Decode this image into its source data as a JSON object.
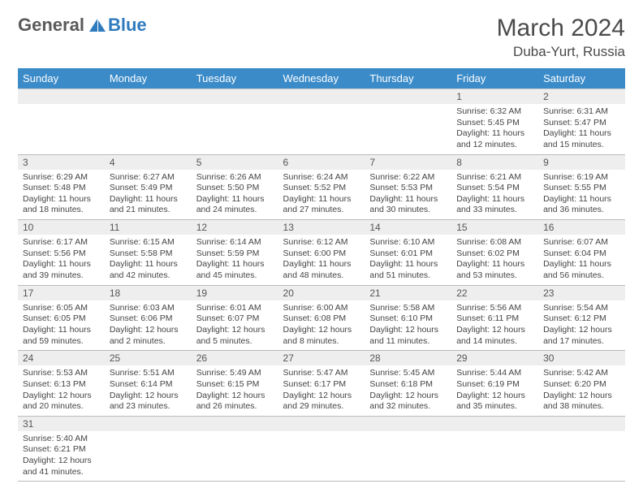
{
  "brand": {
    "part1": "General",
    "part2": "Blue"
  },
  "title": "March 2024",
  "location": "Duba-Yurt, Russia",
  "colors": {
    "header_bg": "#3b8bc9",
    "header_text": "#ffffff",
    "daynum_bg": "#eeeeee",
    "border": "#bbbbbb",
    "brand_gray": "#5a5a5a",
    "brand_blue": "#2f7bbf"
  },
  "day_headers": [
    "Sunday",
    "Monday",
    "Tuesday",
    "Wednesday",
    "Thursday",
    "Friday",
    "Saturday"
  ],
  "weeks": [
    [
      {
        "n": "",
        "sr": "",
        "ss": "",
        "dl": ""
      },
      {
        "n": "",
        "sr": "",
        "ss": "",
        "dl": ""
      },
      {
        "n": "",
        "sr": "",
        "ss": "",
        "dl": ""
      },
      {
        "n": "",
        "sr": "",
        "ss": "",
        "dl": ""
      },
      {
        "n": "",
        "sr": "",
        "ss": "",
        "dl": ""
      },
      {
        "n": "1",
        "sr": "Sunrise: 6:32 AM",
        "ss": "Sunset: 5:45 PM",
        "dl": "Daylight: 11 hours and 12 minutes."
      },
      {
        "n": "2",
        "sr": "Sunrise: 6:31 AM",
        "ss": "Sunset: 5:47 PM",
        "dl": "Daylight: 11 hours and 15 minutes."
      }
    ],
    [
      {
        "n": "3",
        "sr": "Sunrise: 6:29 AM",
        "ss": "Sunset: 5:48 PM",
        "dl": "Daylight: 11 hours and 18 minutes."
      },
      {
        "n": "4",
        "sr": "Sunrise: 6:27 AM",
        "ss": "Sunset: 5:49 PM",
        "dl": "Daylight: 11 hours and 21 minutes."
      },
      {
        "n": "5",
        "sr": "Sunrise: 6:26 AM",
        "ss": "Sunset: 5:50 PM",
        "dl": "Daylight: 11 hours and 24 minutes."
      },
      {
        "n": "6",
        "sr": "Sunrise: 6:24 AM",
        "ss": "Sunset: 5:52 PM",
        "dl": "Daylight: 11 hours and 27 minutes."
      },
      {
        "n": "7",
        "sr": "Sunrise: 6:22 AM",
        "ss": "Sunset: 5:53 PM",
        "dl": "Daylight: 11 hours and 30 minutes."
      },
      {
        "n": "8",
        "sr": "Sunrise: 6:21 AM",
        "ss": "Sunset: 5:54 PM",
        "dl": "Daylight: 11 hours and 33 minutes."
      },
      {
        "n": "9",
        "sr": "Sunrise: 6:19 AM",
        "ss": "Sunset: 5:55 PM",
        "dl": "Daylight: 11 hours and 36 minutes."
      }
    ],
    [
      {
        "n": "10",
        "sr": "Sunrise: 6:17 AM",
        "ss": "Sunset: 5:56 PM",
        "dl": "Daylight: 11 hours and 39 minutes."
      },
      {
        "n": "11",
        "sr": "Sunrise: 6:15 AM",
        "ss": "Sunset: 5:58 PM",
        "dl": "Daylight: 11 hours and 42 minutes."
      },
      {
        "n": "12",
        "sr": "Sunrise: 6:14 AM",
        "ss": "Sunset: 5:59 PM",
        "dl": "Daylight: 11 hours and 45 minutes."
      },
      {
        "n": "13",
        "sr": "Sunrise: 6:12 AM",
        "ss": "Sunset: 6:00 PM",
        "dl": "Daylight: 11 hours and 48 minutes."
      },
      {
        "n": "14",
        "sr": "Sunrise: 6:10 AM",
        "ss": "Sunset: 6:01 PM",
        "dl": "Daylight: 11 hours and 51 minutes."
      },
      {
        "n": "15",
        "sr": "Sunrise: 6:08 AM",
        "ss": "Sunset: 6:02 PM",
        "dl": "Daylight: 11 hours and 53 minutes."
      },
      {
        "n": "16",
        "sr": "Sunrise: 6:07 AM",
        "ss": "Sunset: 6:04 PM",
        "dl": "Daylight: 11 hours and 56 minutes."
      }
    ],
    [
      {
        "n": "17",
        "sr": "Sunrise: 6:05 AM",
        "ss": "Sunset: 6:05 PM",
        "dl": "Daylight: 11 hours and 59 minutes."
      },
      {
        "n": "18",
        "sr": "Sunrise: 6:03 AM",
        "ss": "Sunset: 6:06 PM",
        "dl": "Daylight: 12 hours and 2 minutes."
      },
      {
        "n": "19",
        "sr": "Sunrise: 6:01 AM",
        "ss": "Sunset: 6:07 PM",
        "dl": "Daylight: 12 hours and 5 minutes."
      },
      {
        "n": "20",
        "sr": "Sunrise: 6:00 AM",
        "ss": "Sunset: 6:08 PM",
        "dl": "Daylight: 12 hours and 8 minutes."
      },
      {
        "n": "21",
        "sr": "Sunrise: 5:58 AM",
        "ss": "Sunset: 6:10 PM",
        "dl": "Daylight: 12 hours and 11 minutes."
      },
      {
        "n": "22",
        "sr": "Sunrise: 5:56 AM",
        "ss": "Sunset: 6:11 PM",
        "dl": "Daylight: 12 hours and 14 minutes."
      },
      {
        "n": "23",
        "sr": "Sunrise: 5:54 AM",
        "ss": "Sunset: 6:12 PM",
        "dl": "Daylight: 12 hours and 17 minutes."
      }
    ],
    [
      {
        "n": "24",
        "sr": "Sunrise: 5:53 AM",
        "ss": "Sunset: 6:13 PM",
        "dl": "Daylight: 12 hours and 20 minutes."
      },
      {
        "n": "25",
        "sr": "Sunrise: 5:51 AM",
        "ss": "Sunset: 6:14 PM",
        "dl": "Daylight: 12 hours and 23 minutes."
      },
      {
        "n": "26",
        "sr": "Sunrise: 5:49 AM",
        "ss": "Sunset: 6:15 PM",
        "dl": "Daylight: 12 hours and 26 minutes."
      },
      {
        "n": "27",
        "sr": "Sunrise: 5:47 AM",
        "ss": "Sunset: 6:17 PM",
        "dl": "Daylight: 12 hours and 29 minutes."
      },
      {
        "n": "28",
        "sr": "Sunrise: 5:45 AM",
        "ss": "Sunset: 6:18 PM",
        "dl": "Daylight: 12 hours and 32 minutes."
      },
      {
        "n": "29",
        "sr": "Sunrise: 5:44 AM",
        "ss": "Sunset: 6:19 PM",
        "dl": "Daylight: 12 hours and 35 minutes."
      },
      {
        "n": "30",
        "sr": "Sunrise: 5:42 AM",
        "ss": "Sunset: 6:20 PM",
        "dl": "Daylight: 12 hours and 38 minutes."
      }
    ],
    [
      {
        "n": "31",
        "sr": "Sunrise: 5:40 AM",
        "ss": "Sunset: 6:21 PM",
        "dl": "Daylight: 12 hours and 41 minutes."
      },
      {
        "n": "",
        "sr": "",
        "ss": "",
        "dl": ""
      },
      {
        "n": "",
        "sr": "",
        "ss": "",
        "dl": ""
      },
      {
        "n": "",
        "sr": "",
        "ss": "",
        "dl": ""
      },
      {
        "n": "",
        "sr": "",
        "ss": "",
        "dl": ""
      },
      {
        "n": "",
        "sr": "",
        "ss": "",
        "dl": ""
      },
      {
        "n": "",
        "sr": "",
        "ss": "",
        "dl": ""
      }
    ]
  ]
}
